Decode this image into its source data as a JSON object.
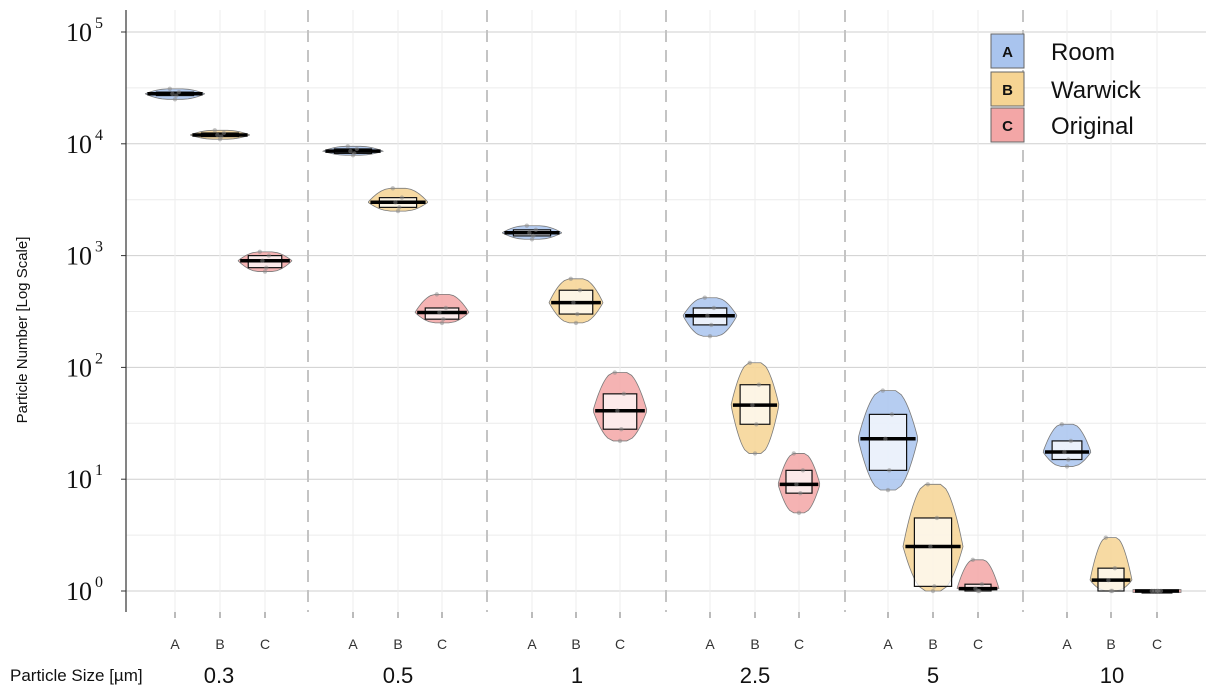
{
  "chart_data": {
    "type": "violin",
    "ylabel": "Particle Number [Log Scale]",
    "xlabel": "Particle Size [µm]",
    "yscale": "log",
    "ylim": [
      0.75,
      140000
    ],
    "y_ticks": [
      {
        "base": "10",
        "exp": "0",
        "value": 1
      },
      {
        "base": "10",
        "exp": "1",
        "value": 10
      },
      {
        "base": "10",
        "exp": "2",
        "value": 100
      },
      {
        "base": "10",
        "exp": "3",
        "value": 1000
      },
      {
        "base": "10",
        "exp": "4",
        "value": 10000
      },
      {
        "base": "10",
        "exp": "5",
        "value": 100000
      }
    ],
    "grid": true,
    "legend": {
      "position": "top-right",
      "entries": [
        {
          "key": "A",
          "label": "Room",
          "color": "#a9c4ee"
        },
        {
          "key": "B",
          "label": "Warwick",
          "color": "#f6d493"
        },
        {
          "key": "C",
          "label": "Original",
          "color": "#f3a6a6"
        }
      ]
    },
    "categories": [
      "A",
      "B",
      "C"
    ],
    "groups": [
      {
        "size": "0.3",
        "stats": [
          {
            "cat": "A",
            "min": 25000,
            "q1": 27000,
            "median": 28000,
            "q3": 29000,
            "max": 31000,
            "width": 0.5
          },
          {
            "cat": "B",
            "min": 11000,
            "q1": 11600,
            "median": 12000,
            "q3": 12500,
            "max": 13200,
            "width": 0.5
          },
          {
            "cat": "C",
            "min": 720,
            "q1": 780,
            "median": 900,
            "q3": 1000,
            "max": 1080,
            "width": 0.45
          }
        ]
      },
      {
        "size": "0.5",
        "stats": [
          {
            "cat": "A",
            "min": 7900,
            "q1": 8200,
            "median": 8600,
            "q3": 9000,
            "max": 9500,
            "width": 0.5
          },
          {
            "cat": "B",
            "min": 2500,
            "q1": 2700,
            "median": 3000,
            "q3": 3300,
            "max": 4000,
            "width": 0.5
          },
          {
            "cat": "C",
            "min": 250,
            "q1": 270,
            "median": 310,
            "q3": 340,
            "max": 450,
            "width": 0.45
          }
        ]
      },
      {
        "size": "1",
        "stats": [
          {
            "cat": "A",
            "min": 1400,
            "q1": 1500,
            "median": 1600,
            "q3": 1700,
            "max": 1850,
            "width": 0.5
          },
          {
            "cat": "B",
            "min": 250,
            "q1": 300,
            "median": 380,
            "q3": 490,
            "max": 620,
            "width": 0.45
          },
          {
            "cat": "C",
            "min": 22,
            "q1": 28,
            "median": 41,
            "q3": 58,
            "max": 90,
            "width": 0.45
          }
        ]
      },
      {
        "size": "2.5",
        "stats": [
          {
            "cat": "A",
            "min": 190,
            "q1": 240,
            "median": 290,
            "q3": 340,
            "max": 420,
            "width": 0.45
          },
          {
            "cat": "B",
            "min": 17,
            "q1": 31,
            "median": 46,
            "q3": 70,
            "max": 110,
            "width": 0.4
          },
          {
            "cat": "C",
            "min": 5,
            "q1": 7.5,
            "median": 9,
            "q3": 12,
            "max": 17,
            "width": 0.35
          }
        ]
      },
      {
        "size": "5",
        "stats": [
          {
            "cat": "A",
            "min": 8,
            "q1": 12,
            "median": 23,
            "q3": 38,
            "max": 62,
            "width": 0.5
          },
          {
            "cat": "B",
            "min": 1,
            "q1": 1.1,
            "median": 2.5,
            "q3": 4.5,
            "max": 9,
            "width": 0.5
          },
          {
            "cat": "C",
            "min": 1,
            "q1": 1,
            "median": 1.05,
            "q3": 1.15,
            "max": 1.9,
            "width": 0.35
          }
        ]
      },
      {
        "size": "10",
        "stats": [
          {
            "cat": "A",
            "min": 13,
            "q1": 15,
            "median": 17.5,
            "q3": 22,
            "max": 31,
            "width": 0.4
          },
          {
            "cat": "B",
            "min": 1,
            "q1": 1,
            "median": 1.25,
            "q3": 1.6,
            "max": 3,
            "width": 0.35
          },
          {
            "cat": "C",
            "min": 1,
            "q1": 1,
            "median": 1,
            "q3": 1,
            "max": 1,
            "width": 0.4
          }
        ]
      }
    ]
  }
}
